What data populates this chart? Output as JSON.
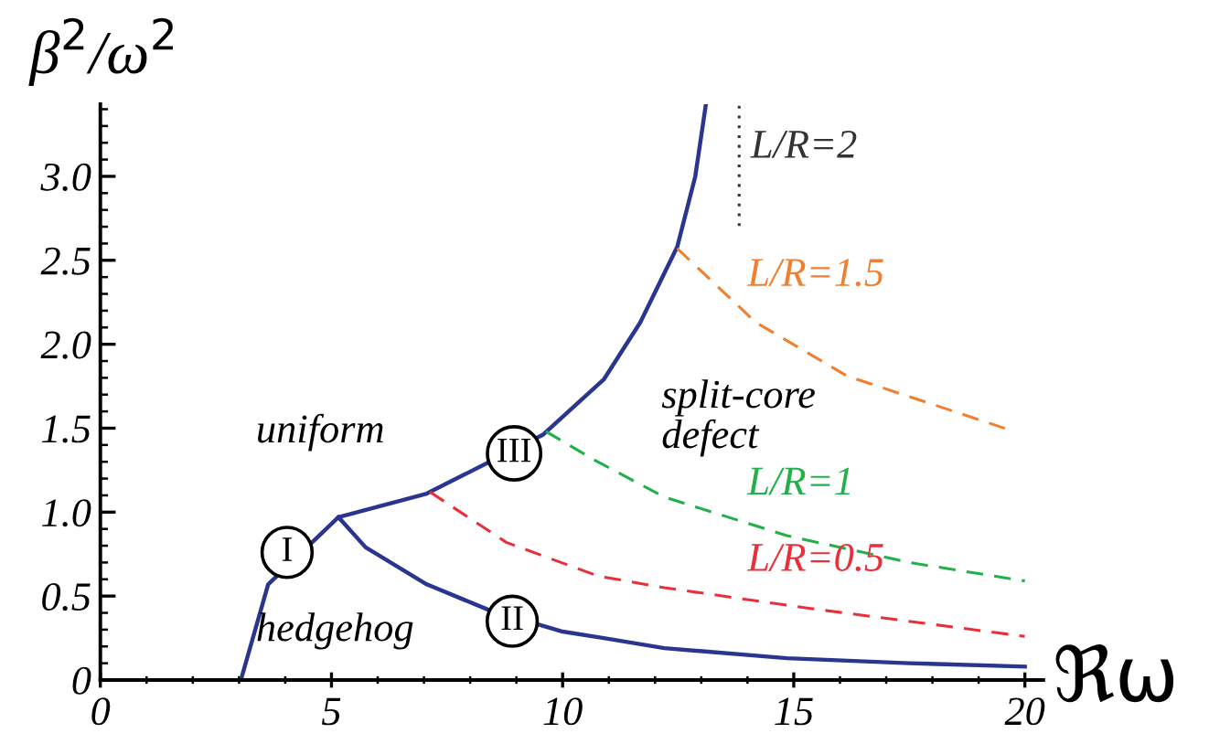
{
  "chart_data": {
    "type": "line",
    "xlabel": "ℜω",
    "ylabel": "β$^{2}$/ω$^{2}$",
    "xlim": [
      0,
      20.4
    ],
    "ylim": [
      0,
      3.43
    ],
    "xticks": [
      0,
      5,
      10,
      15,
      20
    ],
    "yticks": [
      0,
      {
        "value": 0.5,
        "label": "0.5"
      },
      {
        "value": 1.0,
        "label": "1.0"
      },
      {
        "value": 1.5,
        "label": "1.5"
      },
      {
        "value": 2.0,
        "label": "2.0"
      },
      {
        "value": 2.5,
        "label": "2.5"
      },
      {
        "value": 3.0,
        "label": "3.0"
      }
    ],
    "grid": false,
    "legend": false,
    "marker": "none",
    "series": [
      {
        "color": "#2a3590",
        "line_style": "solid",
        "x": [
          3.04,
          3.63,
          5.15,
          7.06,
          9.57,
          10.89,
          11.68,
          12.48,
          12.87,
          13.1
        ],
        "values": [
          0,
          0.57,
          0.97,
          1.11,
          1.46,
          1.79,
          2.13,
          2.58,
          3.0,
          3.43
        ]
      },
      {
        "color": "#2a3590",
        "line_style": "solid",
        "x": [
          5.15,
          5.74,
          7.06,
          8.38,
          9.97,
          10.89,
          12.2,
          14.85,
          17.5,
          20
        ],
        "values": [
          0.97,
          0.79,
          0.57,
          0.42,
          0.29,
          0.25,
          0.19,
          0.13,
          0.1,
          0.08
        ]
      },
      {
        "name": "L/R=0.5",
        "color": "#e8303a",
        "line_style": "dashed",
        "x": [
          7.13,
          8.78,
          10.76,
          12.2,
          15.25,
          20
        ],
        "values": [
          1.12,
          0.82,
          0.62,
          0.55,
          0.43,
          0.26
        ]
      },
      {
        "name": "L/R=1",
        "color": "#22b04a",
        "line_style": "dashed",
        "x": [
          9.64,
          10.69,
          12.2,
          14.85,
          17.5,
          20
        ],
        "values": [
          1.48,
          1.31,
          1.09,
          0.86,
          0.7,
          0.59
        ]
      },
      {
        "name": "L/R=1.5",
        "color": "#f08030",
        "line_style": "dashed",
        "x": [
          12.48,
          14.18,
          16.16,
          19.67
        ],
        "values": [
          2.57,
          2.13,
          1.81,
          1.49
        ]
      },
      {
        "name": "L/R=2",
        "color": "#333333",
        "line_style": "dotted",
        "x": [
          13.82,
          13.82
        ],
        "values": [
          3.42,
          2.69
        ]
      }
    ],
    "annotations": [
      "uniform",
      "hedgehog",
      "split-core\ndefect",
      {
        "text": "I",
        "x": 4.04,
        "y": 0.76
      },
      {
        "text": "II",
        "x": 8.91,
        "y": 0.35
      },
      {
        "text": "III",
        "x": 8.95,
        "y": 1.35
      }
    ]
  }
}
